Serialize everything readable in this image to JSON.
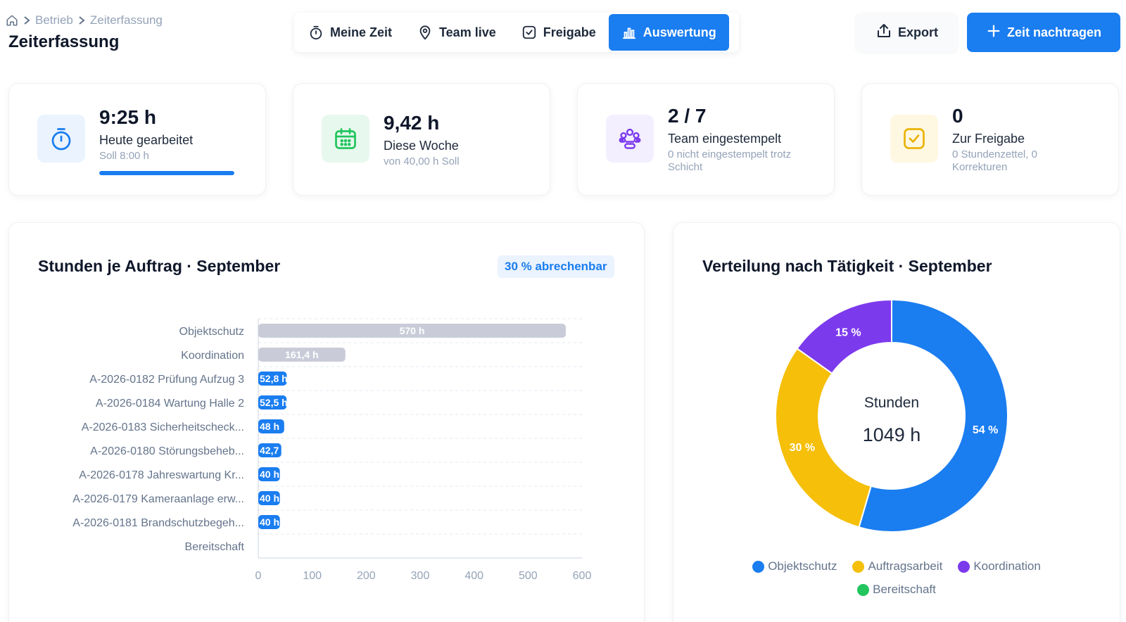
{
  "breadcrumb": {
    "items": [
      "Betrieb",
      "Zeiterfassung"
    ]
  },
  "page": {
    "title": "Zeiterfassung"
  },
  "tabs": [
    {
      "label": "Meine Zeit",
      "icon": "stopwatch-icon",
      "active": false
    },
    {
      "label": "Team live",
      "icon": "map-pin-icon",
      "active": false
    },
    {
      "label": "Freigabe",
      "icon": "check-square-icon",
      "active": false
    },
    {
      "label": "Auswertung",
      "icon": "bar-chart-icon",
      "active": true
    }
  ],
  "actions": {
    "export_label": "Export",
    "add_label": "Zeit nachtragen"
  },
  "kpis": [
    {
      "value": "9:25 h",
      "label": "Heute gearbeitet",
      "sub": "Soll 8:00 h",
      "icon": "stopwatch-icon",
      "progress": 1.0,
      "color": "#1a7df0",
      "bg": "#eaf3fe"
    },
    {
      "value": "9,42 h",
      "label": "Diese Woche",
      "sub": "von 40,00 h Soll",
      "icon": "calendar-icon",
      "color": "#22c55e",
      "bg": "#e7f8ee"
    },
    {
      "value": "2 / 7",
      "label": "Team eingestempelt",
      "sub": "0 nicht eingestempelt trotz Schicht",
      "icon": "users-icon",
      "color": "#7c3aed",
      "bg": "#f3efff"
    },
    {
      "value": "0",
      "label": "Zur Freigabe",
      "sub": "0 Stundenzettel, 0 Korrekturen",
      "icon": "check-square-icon",
      "color": "#eab308",
      "bg": "#fef8e2"
    }
  ],
  "colors": {
    "accent": "#1a7df0",
    "gray_bar": "#c9ccd8",
    "yellow": "#f5bf0a",
    "purple": "#7c3aed",
    "green": "#22c55e"
  },
  "bar_panel": {
    "title": "Stunden je Auftrag · September",
    "badge": "30 % abrechenbar"
  },
  "pie_panel": {
    "title": "Verteilung nach Tätigkeit · September",
    "center_label": "Stunden",
    "center_value": "1049 h"
  },
  "chart_data": [
    {
      "type": "bar",
      "orientation": "horizontal",
      "title": "Stunden je Auftrag · September",
      "categories": [
        "Objektschutz",
        "Koordination",
        "A-2026-0182 Prüfung Aufzug 3",
        "A-2026-0184 Wartung Halle 2",
        "A-2026-0183 Sicherheitscheck...",
        "A-2026-0180 Störungsbeheb...",
        "A-2026-0178 Jahreswartung Kr...",
        "A-2026-0179 Kameraanlage erw...",
        "A-2026-0181 Brandschutzbegeh...",
        "Bereitschaft"
      ],
      "values": [
        570,
        161.4,
        52.8,
        52.5,
        48,
        42.7,
        40,
        40,
        40,
        0
      ],
      "labels": [
        "570 h",
        "161,4 h",
        "52,8 h",
        "52,5 h",
        "48 h",
        "42,7",
        "40 h",
        "40 h",
        "40 h",
        ""
      ],
      "bar_colors": [
        "gray",
        "gray",
        "blue",
        "blue",
        "blue",
        "blue",
        "blue",
        "blue",
        "blue",
        "blue"
      ],
      "xlim": [
        0,
        600
      ],
      "xticks": [
        0,
        100,
        200,
        300,
        400,
        500,
        600
      ],
      "grid": true
    },
    {
      "type": "pie",
      "variant": "donut",
      "title": "Verteilung nach Tätigkeit · September",
      "slices": [
        {
          "name": "Objektschutz",
          "value": 54,
          "label": "54 %",
          "color": "#1a7df0"
        },
        {
          "name": "Auftragsarbeit",
          "value": 30,
          "label": "30 %",
          "color": "#f5bf0a"
        },
        {
          "name": "Koordination",
          "value": 15,
          "label": "15 %",
          "color": "#7c3aed"
        },
        {
          "name": "Bereitschaft",
          "value": 0,
          "label": "",
          "color": "#22c55e"
        }
      ],
      "legend": "bottom"
    }
  ]
}
